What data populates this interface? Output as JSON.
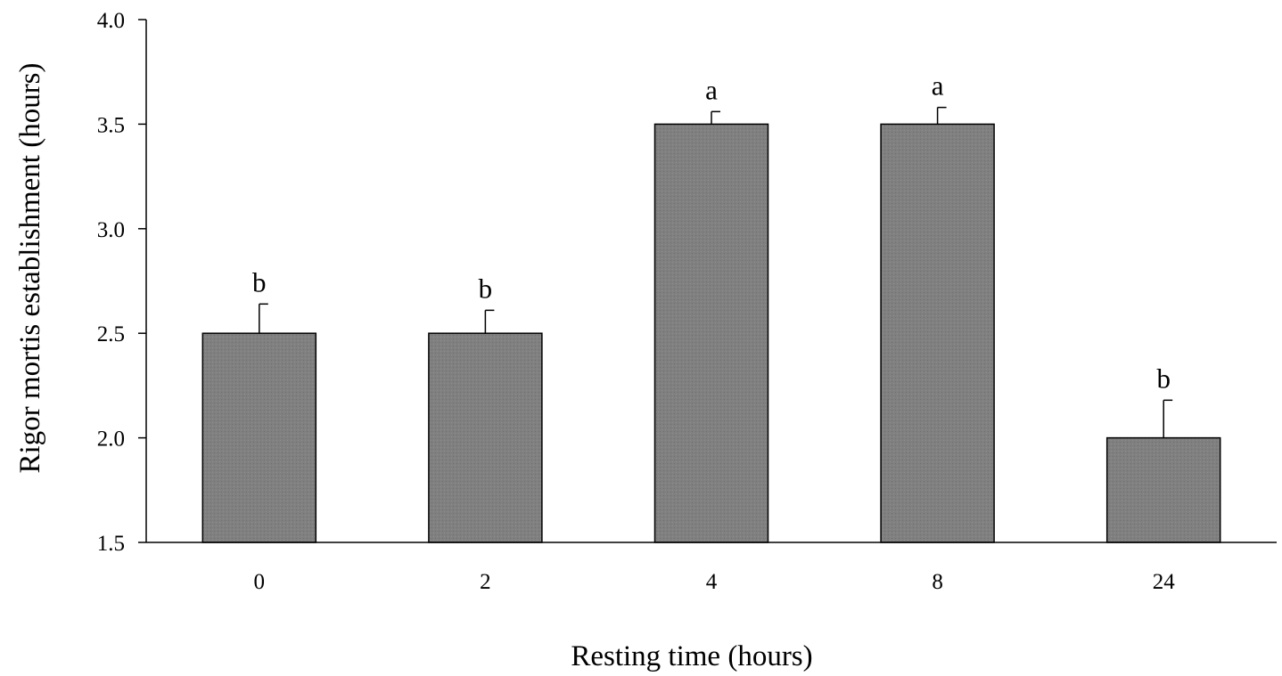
{
  "chart_data": {
    "type": "bar",
    "categories": [
      "0",
      "2",
      "4",
      "8",
      "24"
    ],
    "values": [
      2.5,
      2.5,
      3.5,
      3.5,
      2.0
    ],
    "errors": [
      0.14,
      0.11,
      0.06,
      0.08,
      0.18
    ],
    "significance_labels": [
      "b",
      "b",
      "a",
      "a",
      "b"
    ],
    "xlabel": "Resting time (hours)",
    "ylabel": "Rigor mortis establishment  (hours)",
    "ylim": [
      1.5,
      4.0
    ],
    "yticks": [
      "1.5",
      "2.0",
      "2.5",
      "3.0",
      "3.5",
      "4.0"
    ],
    "bar_color": "#808080",
    "bar_edge_color": "#000000",
    "grid": false,
    "legend": "none"
  }
}
